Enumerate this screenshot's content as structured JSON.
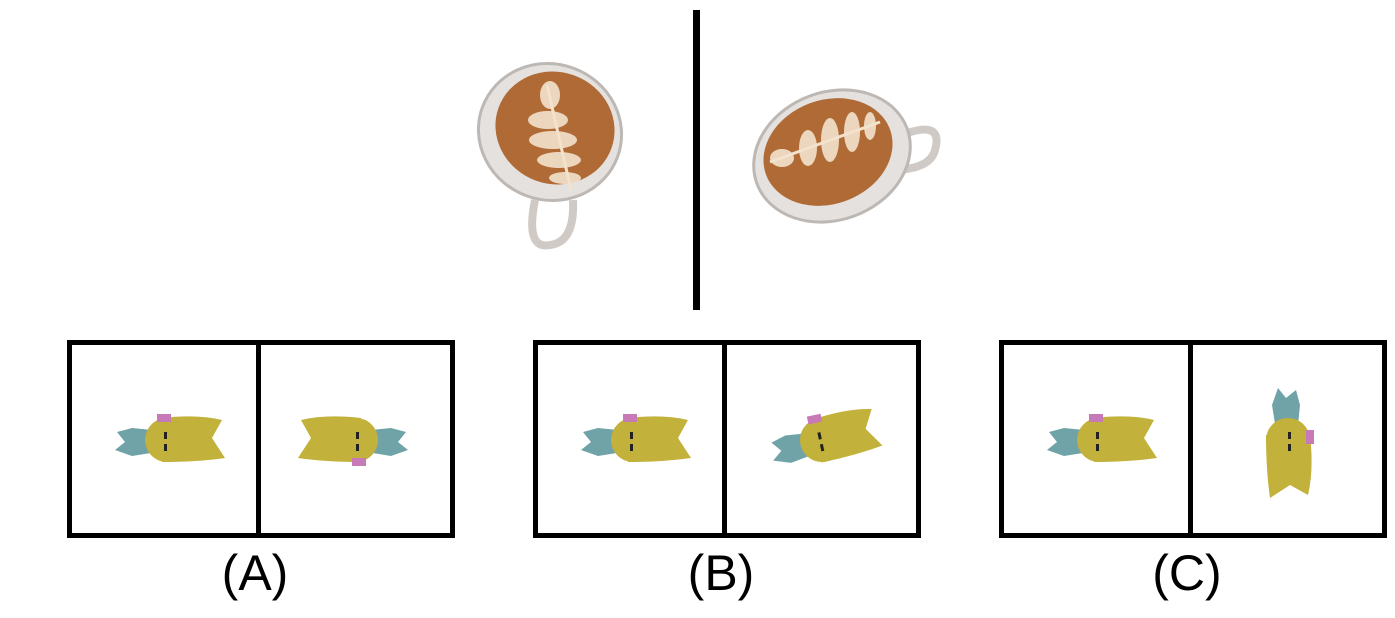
{
  "options": [
    {
      "label": "(A)"
    },
    {
      "label": "(B)"
    },
    {
      "label": "(C)"
    }
  ],
  "icons": {
    "reference_object": "latte-cup-icon",
    "option_object": "cat-figure-icon"
  },
  "colors": {
    "frame": "#000000",
    "cat_head": "#c2b13a",
    "cat_body": "#6fa3a8",
    "cat_ear_tag": "#c87ab8",
    "cup_rim": "#d8d5d2",
    "foam": "#b6723f"
  }
}
